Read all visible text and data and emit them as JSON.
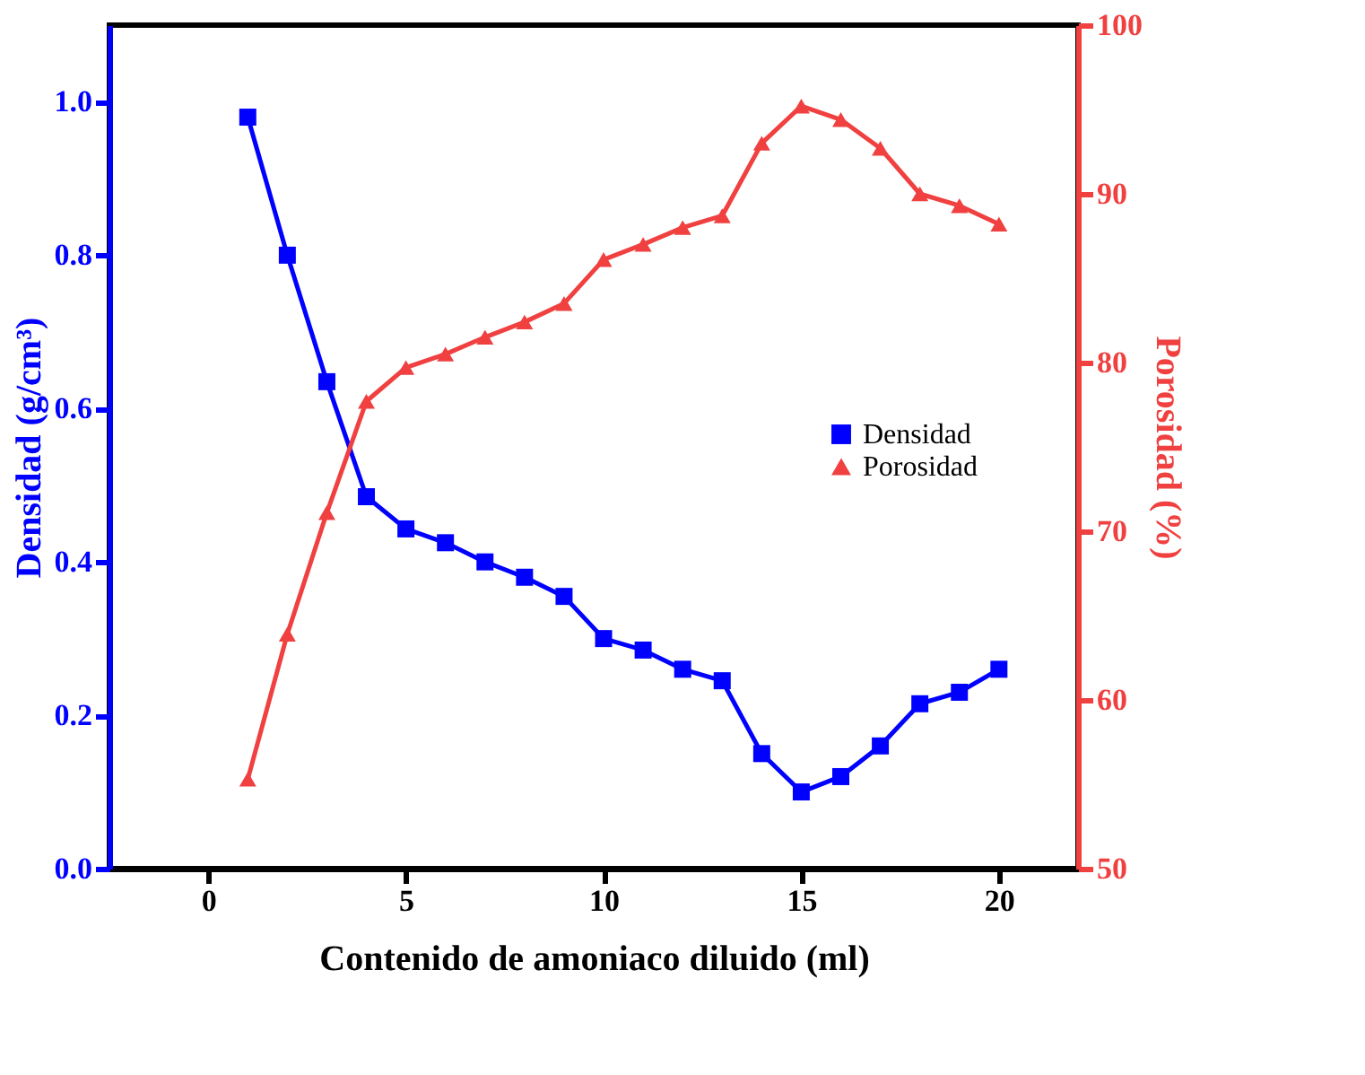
{
  "chart_data": {
    "type": "line",
    "xlabel": "Contenido de amoniaco diluido (ml)",
    "ylabel": "Densidad (g/cm³)",
    "y2label": "Porosidad (%)",
    "x": [
      1,
      2,
      3,
      4,
      5,
      6,
      7,
      8,
      9,
      10,
      11,
      12,
      13,
      14,
      15,
      16,
      17,
      18,
      19,
      20
    ],
    "xlim": [
      -2.5,
      22
    ],
    "xticks": [
      0,
      5,
      10,
      15,
      20
    ],
    "ylim": [
      0,
      1.1
    ],
    "yticks": [
      {
        "value": 0,
        "label": "0.0"
      },
      {
        "value": 0.2,
        "label": "0.2"
      },
      {
        "value": 0.4,
        "label": "0.4"
      },
      {
        "value": 0.6,
        "label": "0.6"
      },
      {
        "value": 0.8,
        "label": "0.8"
      },
      {
        "value": 1,
        "label": "1.0"
      }
    ],
    "y2lim": [
      50,
      100
    ],
    "y2ticks": [
      50,
      60,
      70,
      80,
      90,
      100
    ],
    "series": [
      {
        "name": "Densidad",
        "color": "#0000ff",
        "marker": "square",
        "values": [
          0.98,
          0.8,
          0.635,
          0.485,
          0.443,
          0.425,
          0.4,
          0.38,
          0.355,
          0.3,
          0.285,
          0.26,
          0.245,
          0.15,
          0.1,
          0.12,
          0.16,
          0.215,
          0.23,
          0.26
        ]
      },
      {
        "name": "Porosidad",
        "color": "#f04040",
        "marker": "triangle",
        "axis": "y2",
        "values": [
          55.3,
          63.9,
          71.1,
          77.7,
          79.7,
          80.5,
          81.5,
          82.4,
          83.5,
          86.1,
          87.0,
          88.0,
          88.7,
          93.0,
          95.2,
          94.4,
          92.7,
          90.0,
          89.3,
          88.2
        ]
      }
    ],
    "legend": "right",
    "grid": false,
    "line_style": "solid"
  }
}
